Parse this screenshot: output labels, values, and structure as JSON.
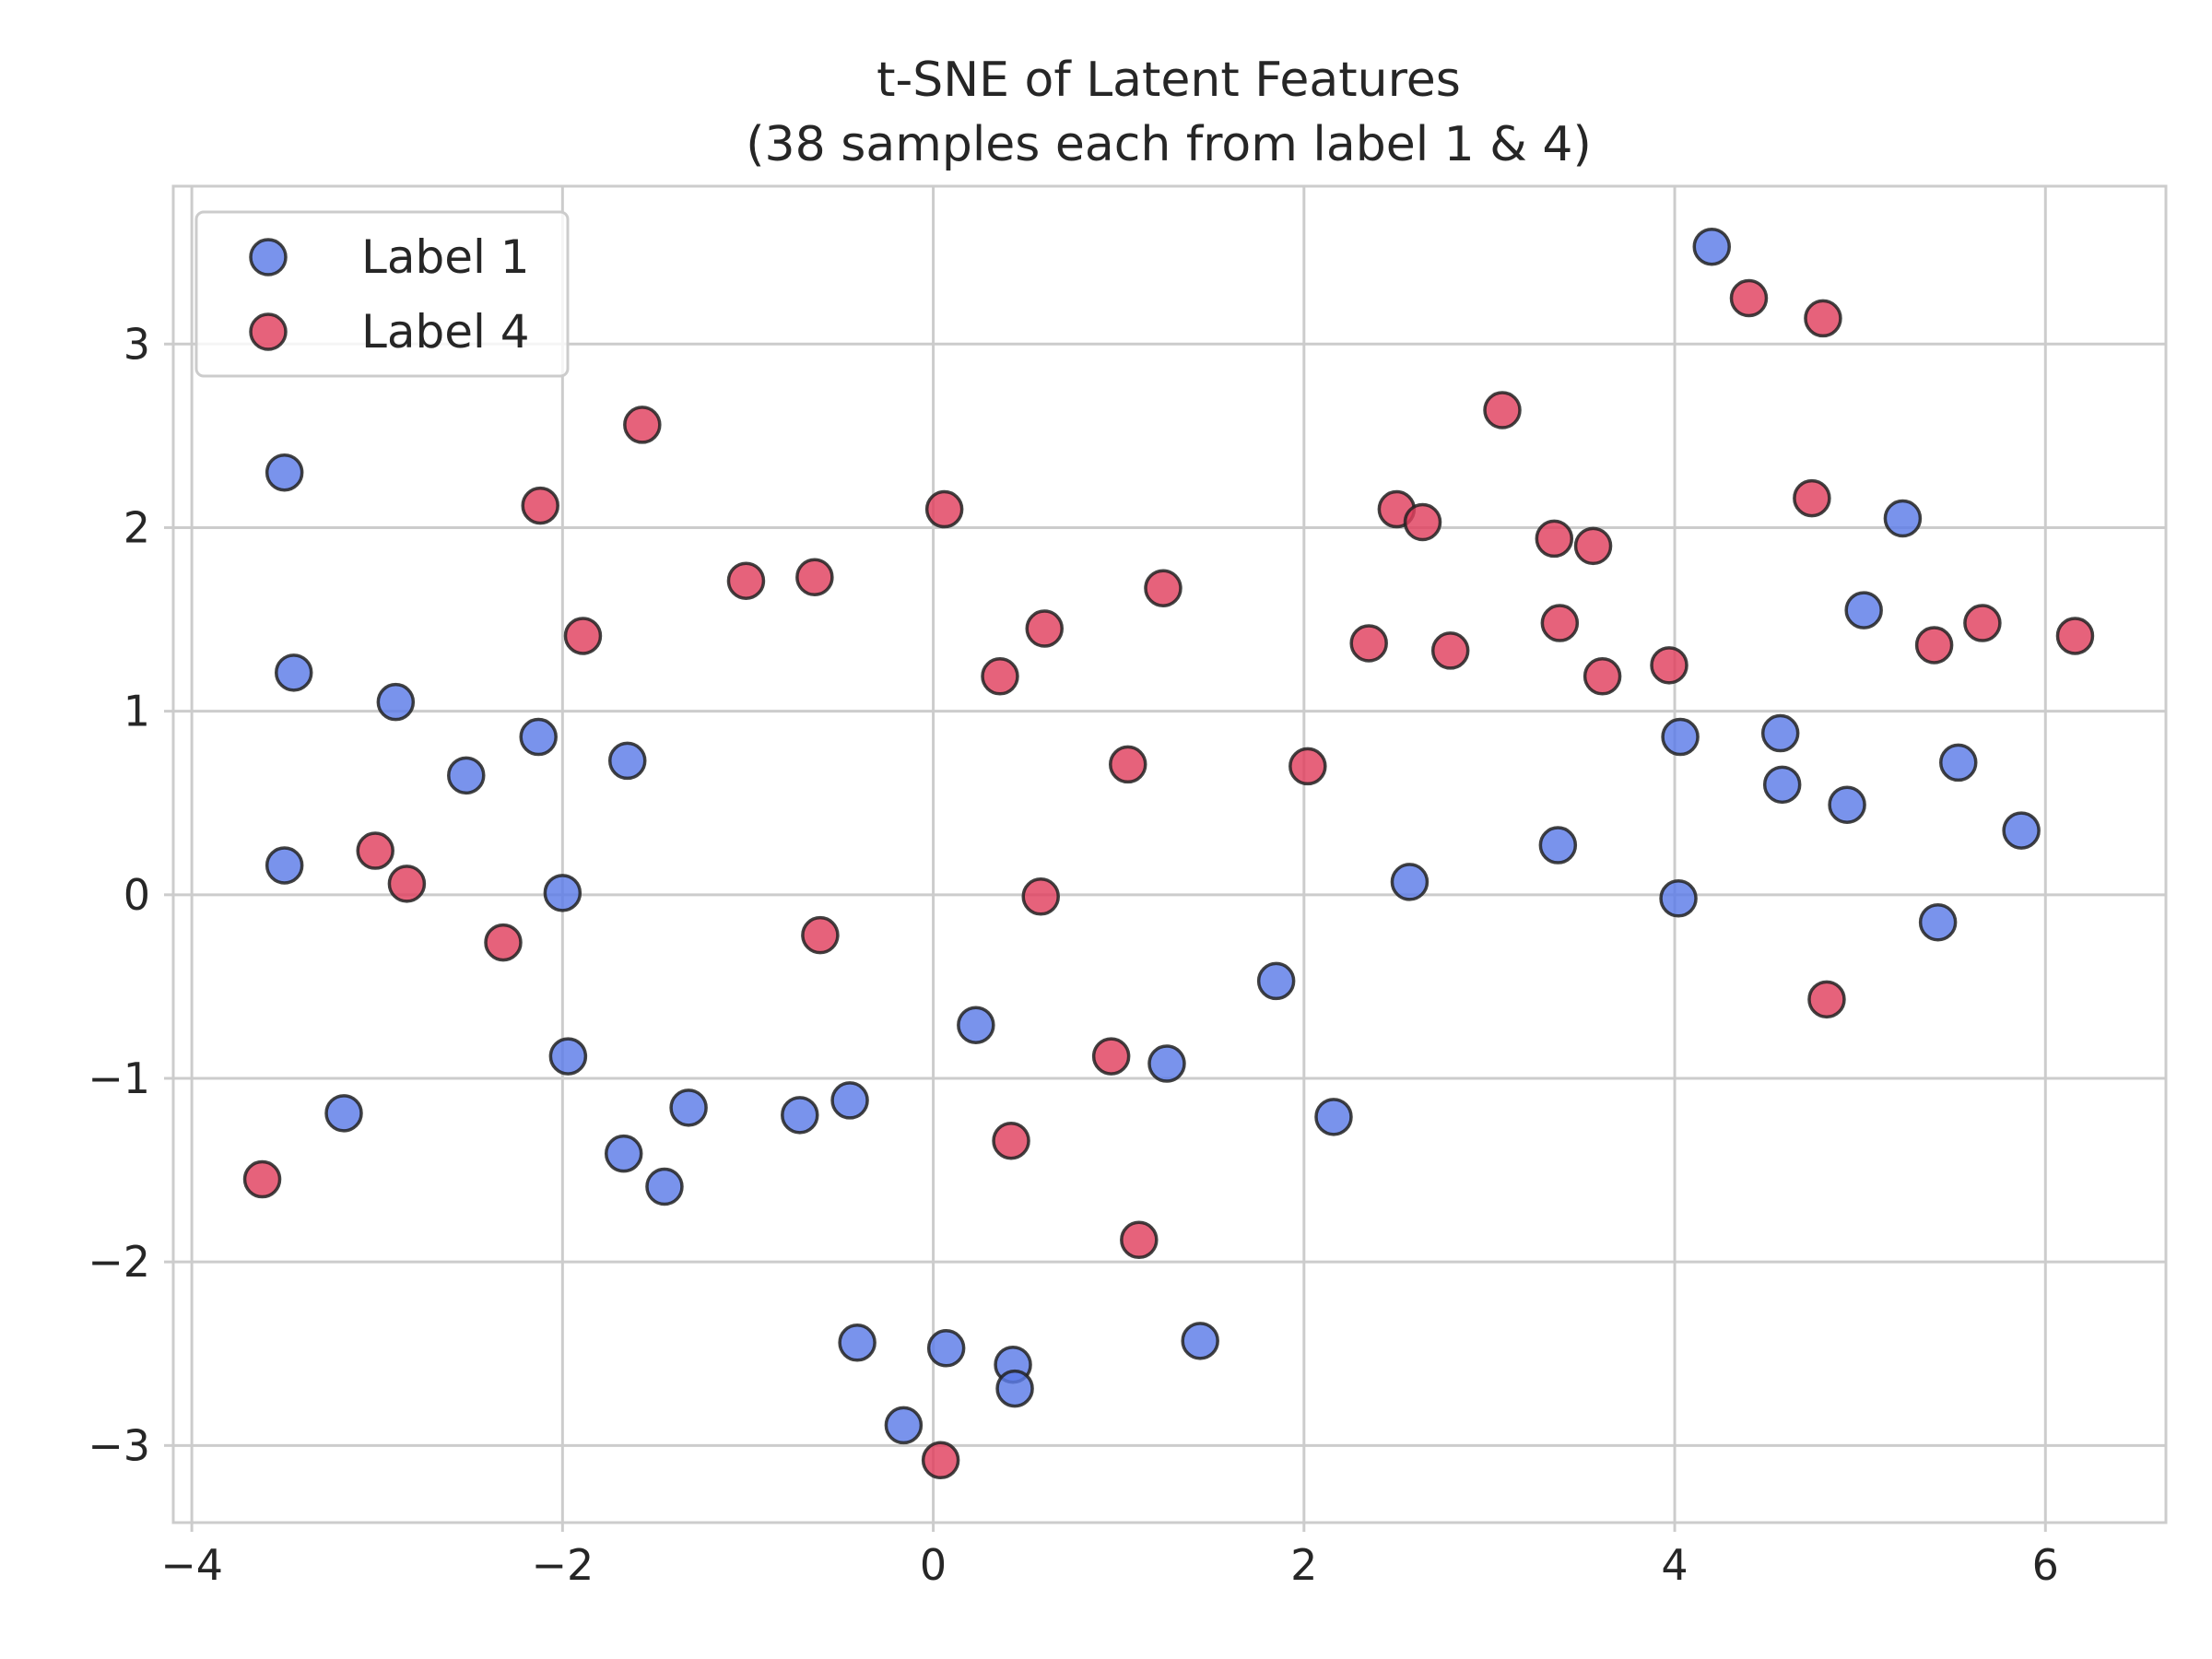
{
  "chart_data": {
    "type": "scatter",
    "title_lines": [
      "t-SNE of Latent Features",
      "(38 samples each from label 1 & 4)"
    ],
    "xlabel": "",
    "ylabel": "",
    "xlim": [
      -4.1,
      6.65
    ],
    "ylim": [
      -3.42,
      3.86
    ],
    "xticks": [
      -4,
      -2,
      0,
      2,
      4,
      6
    ],
    "yticks": [
      -3,
      -2,
      -1,
      0,
      1,
      2,
      3
    ],
    "xtick_labels": [
      "−4",
      "−2",
      "0",
      "2",
      "4",
      "6"
    ],
    "ytick_labels": [
      "−3",
      "−2",
      "−1",
      "0",
      "1",
      "2",
      "3"
    ],
    "grid": true,
    "legend_position": "top-left",
    "series": [
      {
        "name": "Label 1",
        "color": "#5b7be8",
        "points": [
          [
            4.2,
            3.53
          ],
          [
            -3.5,
            2.3
          ],
          [
            5.23,
            2.05
          ],
          [
            5.02,
            1.55
          ],
          [
            -3.45,
            1.21
          ],
          [
            -2.9,
            1.05
          ],
          [
            -2.13,
            0.86
          ],
          [
            -2.52,
            0.65
          ],
          [
            -1.65,
            0.73
          ],
          [
            4.03,
            0.86
          ],
          [
            4.57,
            0.88
          ],
          [
            5.53,
            0.72
          ],
          [
            4.58,
            0.6
          ],
          [
            4.93,
            0.49
          ],
          [
            5.87,
            0.35
          ],
          [
            -3.5,
            0.16
          ],
          [
            -2.0,
            0.01
          ],
          [
            2.57,
            0.07
          ],
          [
            3.37,
            0.27
          ],
          [
            4.02,
            -0.02
          ],
          [
            5.42,
            -0.15
          ],
          [
            1.85,
            -0.47
          ],
          [
            0.23,
            -0.71
          ],
          [
            -1.97,
            -0.88
          ],
          [
            -3.18,
            -1.19
          ],
          [
            -1.32,
            -1.16
          ],
          [
            -0.72,
            -1.2
          ],
          [
            -0.45,
            -1.12
          ],
          [
            -1.67,
            -1.41
          ],
          [
            -1.45,
            -1.59
          ],
          [
            1.26,
            -0.92
          ],
          [
            2.16,
            -1.21
          ],
          [
            -0.41,
            -2.44
          ],
          [
            0.07,
            -2.47
          ],
          [
            0.43,
            -2.56
          ],
          [
            0.44,
            -2.69
          ],
          [
            1.44,
            -2.43
          ],
          [
            -0.16,
            -2.89
          ]
        ]
      },
      {
        "name": "Label 4",
        "color": "#e0405e",
        "points": [
          [
            4.4,
            3.25
          ],
          [
            4.8,
            3.14
          ],
          [
            3.07,
            2.64
          ],
          [
            -1.57,
            2.56
          ],
          [
            -2.12,
            2.12
          ],
          [
            0.06,
            2.1
          ],
          [
            2.5,
            2.1
          ],
          [
            2.64,
            2.03
          ],
          [
            4.74,
            2.16
          ],
          [
            3.35,
            1.94
          ],
          [
            3.56,
            1.9
          ],
          [
            -1.01,
            1.71
          ],
          [
            -0.64,
            1.73
          ],
          [
            1.24,
            1.67
          ],
          [
            -1.89,
            1.41
          ],
          [
            0.6,
            1.45
          ],
          [
            3.38,
            1.48
          ],
          [
            5.66,
            1.48
          ],
          [
            6.16,
            1.41
          ],
          [
            2.35,
            1.37
          ],
          [
            2.79,
            1.33
          ],
          [
            5.4,
            1.36
          ],
          [
            3.97,
            1.25
          ],
          [
            3.61,
            1.19
          ],
          [
            0.36,
            1.19
          ],
          [
            1.05,
            0.71
          ],
          [
            2.02,
            0.7
          ],
          [
            -3.01,
            0.24
          ],
          [
            -2.84,
            0.06
          ],
          [
            -2.32,
            -0.26
          ],
          [
            0.58,
            -0.01
          ],
          [
            -0.61,
            -0.22
          ],
          [
            4.82,
            -0.57
          ],
          [
            0.96,
            -0.88
          ],
          [
            0.42,
            -1.34
          ],
          [
            -3.62,
            -1.55
          ],
          [
            1.11,
            -1.88
          ],
          [
            0.04,
            -3.08
          ]
        ]
      }
    ]
  }
}
